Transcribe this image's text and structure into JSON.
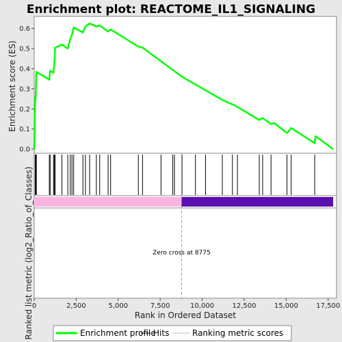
{
  "chart_data": {
    "type": "line",
    "title": "Enrichment plot: REACTOME_IL1_SIGNALING",
    "xlabel": "Rank in Ordered Dataset",
    "ylabel_top": "Enrichment score (ES)",
    "ylabel_bottom": "Ranked list metric (log2_Ratio_of_Classes)",
    "xlim": [
      0,
      18000
    ],
    "ylim": [
      -0.02,
      0.66
    ],
    "x_ticks": [
      0,
      2500,
      5000,
      7500,
      10000,
      12500,
      15000,
      17500
    ],
    "x_tick_labels": [
      "0",
      "2,500",
      "5,000",
      "7,500",
      "10,000",
      "12,500",
      "15,000",
      "17,500"
    ],
    "y_ticks": [
      0.0,
      0.1,
      0.2,
      0.3,
      0.4,
      0.5,
      0.6
    ],
    "y_tick_labels": [
      "0.0",
      "0.1",
      "0.2",
      "0.3",
      "0.4",
      "0.5",
      "0.6"
    ],
    "zero_cross_rank": 8775,
    "zero_cross_label": "Zero cross at 8775",
    "total_ranks": 17800,
    "series": [
      {
        "name": "Enrichment profile",
        "color": "#00ff00",
        "x": [
          0,
          60,
          90,
          130,
          900,
          950,
          1150,
          1200,
          1250,
          1650,
          2000,
          2150,
          2250,
          2350,
          2900,
          3050,
          3300,
          3700,
          3900,
          4400,
          4550,
          6200,
          6450,
          8800,
          11200,
          12000,
          13400,
          13600,
          14100,
          14300,
          15050,
          15300,
          16700,
          16750,
          17800
        ],
        "y": [
          0.0,
          0.26,
          0.25,
          0.385,
          0.345,
          0.39,
          0.38,
          0.43,
          0.505,
          0.52,
          0.5,
          0.55,
          0.57,
          0.605,
          0.58,
          0.61,
          0.625,
          0.61,
          0.615,
          0.585,
          0.595,
          0.51,
          0.505,
          0.36,
          0.245,
          0.215,
          0.145,
          0.155,
          0.125,
          0.13,
          0.08,
          0.105,
          0.03,
          0.065,
          0.0
        ]
      }
    ],
    "hits": [
      60,
      90,
      130,
      900,
      950,
      1150,
      1200,
      1250,
      1650,
      2000,
      2150,
      2250,
      2350,
      2900,
      3050,
      3300,
      3700,
      3900,
      4400,
      4550,
      6200,
      6450,
      7550,
      8250,
      8350,
      8800,
      9600,
      10200,
      11200,
      11800,
      12100,
      13400,
      13600,
      14100,
      15050,
      15300,
      16700
    ],
    "metric_bar": {
      "positive_color": "#f9b4e0",
      "negative_color": "#5a0fb0",
      "positive_range": [
        0,
        8775
      ],
      "negative_range": [
        8775,
        17800
      ]
    },
    "legend": [
      {
        "label": "Enrichment profile",
        "color": "#00ff00",
        "style": "thick-line"
      },
      {
        "label": "Hits",
        "color": "#000000",
        "style": "thin-line"
      },
      {
        "label": "Ranking metric scores",
        "color": "#bbbbbb",
        "style": "thin-line"
      }
    ]
  }
}
